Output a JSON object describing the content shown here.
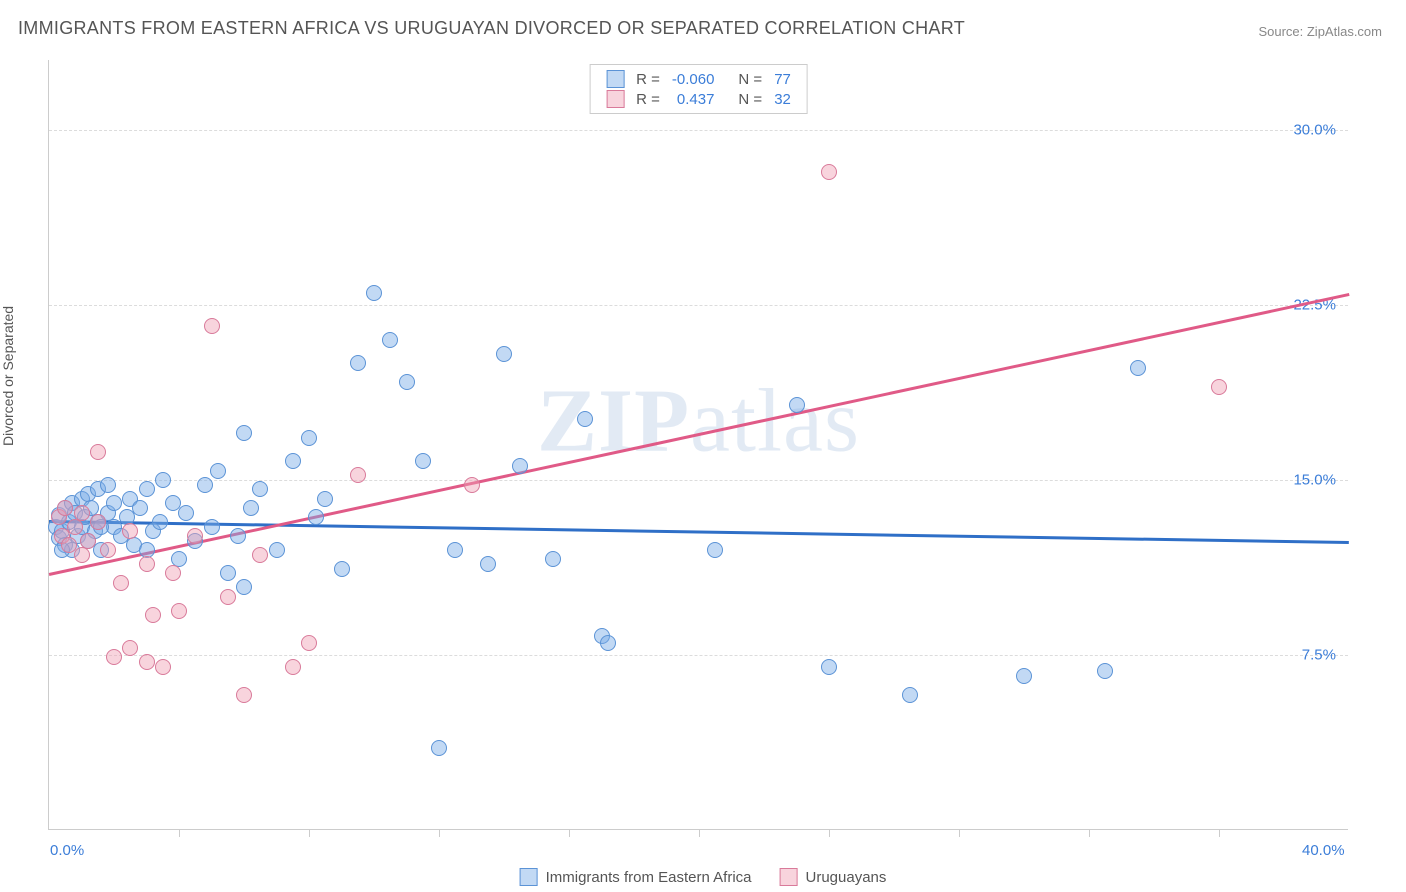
{
  "title": "IMMIGRANTS FROM EASTERN AFRICA VS URUGUAYAN DIVORCED OR SEPARATED CORRELATION CHART",
  "source_label": "Source: ",
  "source_value": "ZipAtlas.com",
  "watermark": "ZIPatlas",
  "y_axis_label": "Divorced or Separated",
  "chart": {
    "type": "scatter",
    "xlim": [
      0,
      40
    ],
    "ylim": [
      0,
      33
    ],
    "x_origin_label": "0.0%",
    "x_max_label": "40.0%",
    "y_ticks": [
      {
        "v": 7.5,
        "label": "7.5%"
      },
      {
        "v": 15.0,
        "label": "15.0%"
      },
      {
        "v": 22.5,
        "label": "22.5%"
      },
      {
        "v": 30.0,
        "label": "30.0%"
      }
    ],
    "x_tick_positions": [
      4,
      8,
      12,
      16,
      20,
      24,
      28,
      32,
      36
    ],
    "background_color": "#ffffff",
    "grid_color": "#dcdcdc",
    "point_radius": 8,
    "point_border_width": 1,
    "series": [
      {
        "id": "eastern_africa",
        "legend_label": "Immigrants from Eastern Africa",
        "fill": "rgba(120,170,230,0.45)",
        "stroke": "#5b93d6",
        "R_label": "R =",
        "R_value": "-0.060",
        "N_label": "N =",
        "N_value": "77",
        "trend": {
          "color": "#2f6fc7",
          "y_at_x0": 13.3,
          "y_at_xmax": 12.4,
          "width": 2.5
        },
        "points": [
          [
            0.2,
            13.0
          ],
          [
            0.3,
            12.5
          ],
          [
            0.3,
            13.5
          ],
          [
            0.4,
            12.8
          ],
          [
            0.5,
            13.8
          ],
          [
            0.5,
            12.2
          ],
          [
            0.6,
            13.2
          ],
          [
            0.7,
            14.0
          ],
          [
            0.7,
            12.0
          ],
          [
            0.8,
            13.6
          ],
          [
            0.9,
            12.6
          ],
          [
            1.0,
            13.0
          ],
          [
            1.0,
            14.2
          ],
          [
            1.1,
            13.4
          ],
          [
            1.2,
            12.4
          ],
          [
            1.2,
            14.4
          ],
          [
            1.3,
            13.8
          ],
          [
            1.4,
            12.8
          ],
          [
            1.5,
            13.2
          ],
          [
            1.5,
            14.6
          ],
          [
            1.6,
            12.0
          ],
          [
            1.8,
            13.6
          ],
          [
            1.8,
            14.8
          ],
          [
            2.0,
            13.0
          ],
          [
            2.0,
            14.0
          ],
          [
            2.2,
            12.6
          ],
          [
            2.4,
            13.4
          ],
          [
            2.5,
            14.2
          ],
          [
            2.6,
            12.2
          ],
          [
            2.8,
            13.8
          ],
          [
            3.0,
            14.6
          ],
          [
            3.2,
            12.8
          ],
          [
            3.4,
            13.2
          ],
          [
            3.5,
            15.0
          ],
          [
            3.8,
            14.0
          ],
          [
            4.0,
            11.6
          ],
          [
            4.2,
            13.6
          ],
          [
            4.5,
            12.4
          ],
          [
            4.8,
            14.8
          ],
          [
            5.0,
            13.0
          ],
          [
            5.2,
            15.4
          ],
          [
            5.5,
            11.0
          ],
          [
            5.8,
            12.6
          ],
          [
            6.0,
            17.0
          ],
          [
            6.0,
            10.4
          ],
          [
            6.2,
            13.8
          ],
          [
            6.5,
            14.6
          ],
          [
            7.0,
            12.0
          ],
          [
            7.5,
            15.8
          ],
          [
            8.0,
            16.8
          ],
          [
            8.2,
            13.4
          ],
          [
            8.5,
            14.2
          ],
          [
            9.0,
            11.2
          ],
          [
            9.5,
            20.0
          ],
          [
            10.0,
            23.0
          ],
          [
            10.5,
            21.0
          ],
          [
            11.0,
            19.2
          ],
          [
            11.5,
            15.8
          ],
          [
            12.0,
            3.5
          ],
          [
            12.5,
            12.0
          ],
          [
            13.5,
            11.4
          ],
          [
            14.0,
            20.4
          ],
          [
            14.5,
            15.6
          ],
          [
            15.5,
            11.6
          ],
          [
            16.5,
            17.6
          ],
          [
            17.0,
            8.3
          ],
          [
            17.2,
            8.0
          ],
          [
            20.5,
            12.0
          ],
          [
            23.0,
            18.2
          ],
          [
            24.0,
            7.0
          ],
          [
            26.5,
            5.8
          ],
          [
            30.0,
            6.6
          ],
          [
            32.5,
            6.8
          ],
          [
            33.5,
            19.8
          ],
          [
            0.4,
            12.0
          ],
          [
            1.6,
            13.0
          ],
          [
            3.0,
            12.0
          ]
        ]
      },
      {
        "id": "uruguayans",
        "legend_label": "Uruguayans",
        "fill": "rgba(240,160,180,0.45)",
        "stroke": "#d97a9a",
        "R_label": "R =",
        "R_value": "0.437",
        "N_label": "N =",
        "N_value": "32",
        "trend": {
          "color": "#e05a87",
          "y_at_x0": 11.0,
          "y_at_xmax": 23.0,
          "width": 2.5
        },
        "points": [
          [
            0.3,
            13.4
          ],
          [
            0.4,
            12.6
          ],
          [
            0.5,
            13.8
          ],
          [
            0.6,
            12.2
          ],
          [
            0.8,
            13.0
          ],
          [
            1.0,
            11.8
          ],
          [
            1.0,
            13.6
          ],
          [
            1.2,
            12.4
          ],
          [
            1.5,
            13.2
          ],
          [
            1.5,
            16.2
          ],
          [
            1.8,
            12.0
          ],
          [
            2.0,
            7.4
          ],
          [
            2.2,
            10.6
          ],
          [
            2.5,
            12.8
          ],
          [
            2.5,
            7.8
          ],
          [
            3.0,
            11.4
          ],
          [
            3.0,
            7.2
          ],
          [
            3.2,
            9.2
          ],
          [
            3.5,
            7.0
          ],
          [
            3.8,
            11.0
          ],
          [
            4.0,
            9.4
          ],
          [
            4.5,
            12.6
          ],
          [
            5.0,
            21.6
          ],
          [
            5.5,
            10.0
          ],
          [
            6.0,
            5.8
          ],
          [
            6.5,
            11.8
          ],
          [
            7.5,
            7.0
          ],
          [
            8.0,
            8.0
          ],
          [
            9.5,
            15.2
          ],
          [
            13.0,
            14.8
          ],
          [
            24.0,
            28.2
          ],
          [
            36.0,
            19.0
          ]
        ]
      }
    ]
  }
}
